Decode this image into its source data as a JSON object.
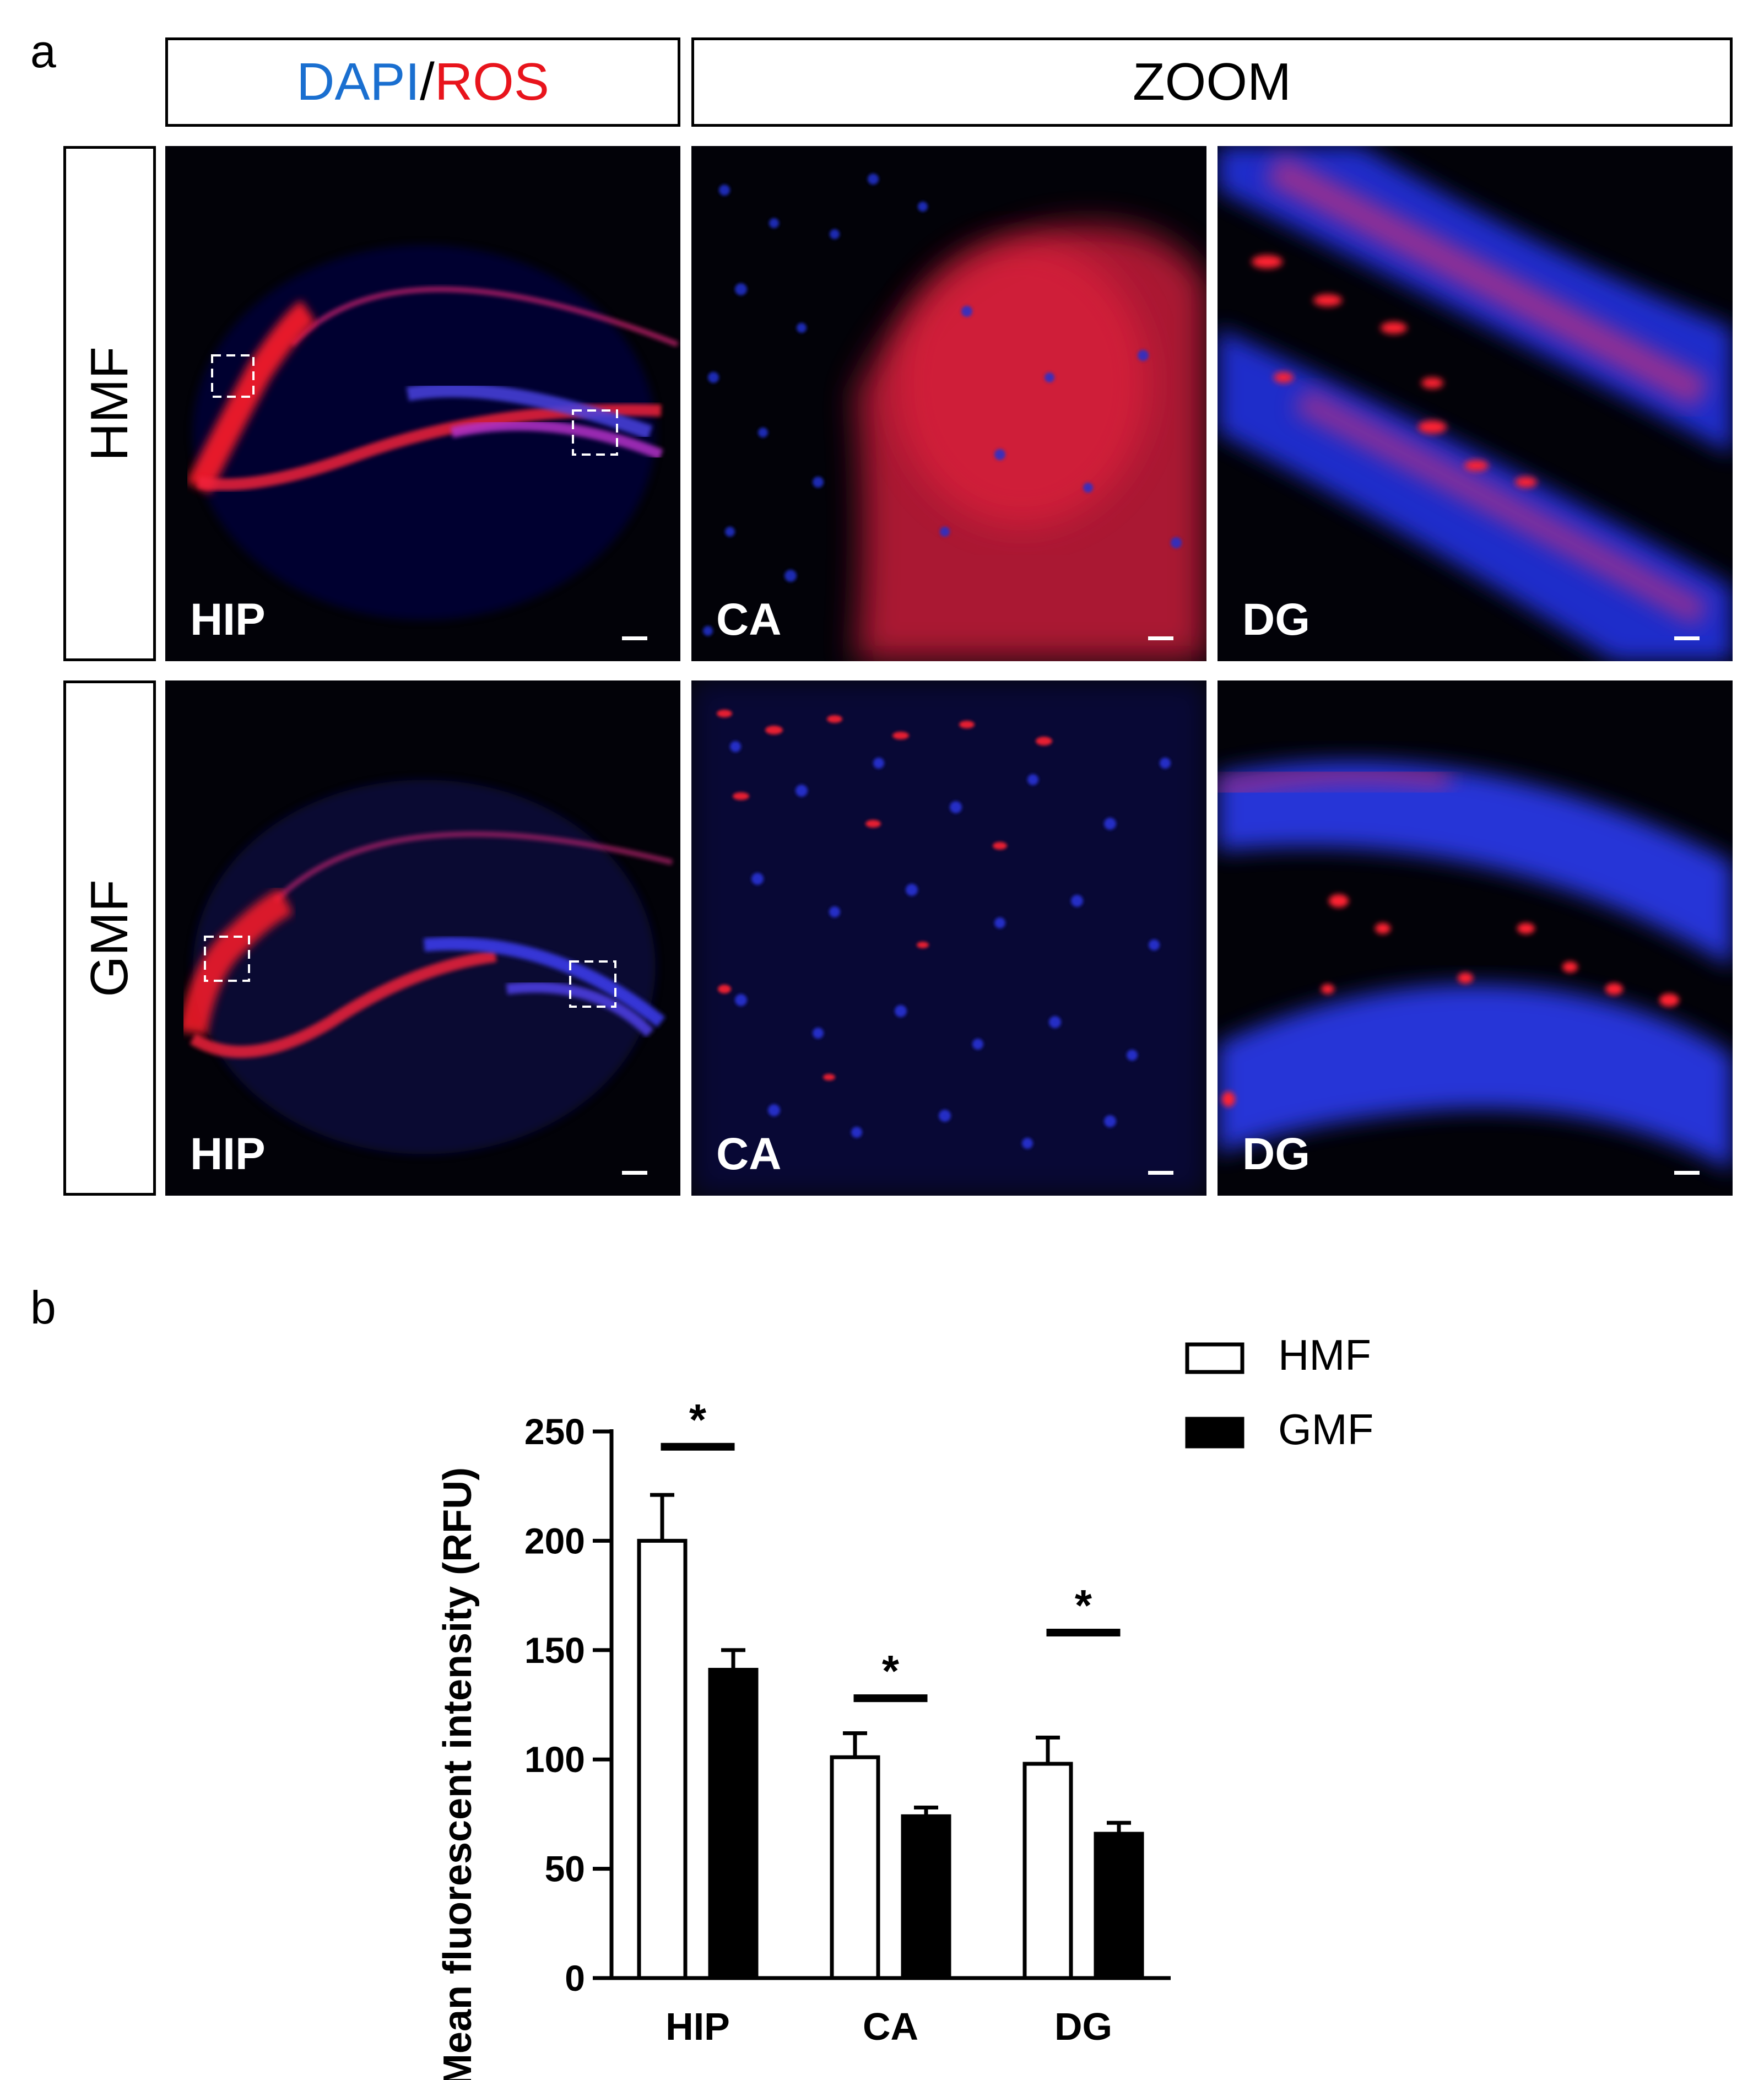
{
  "panel_a": {
    "letter": "a",
    "header_left_blue": "DAPI",
    "header_left_sep": "/",
    "header_left_red": "ROS",
    "header_right": "ZOOM",
    "rows": [
      {
        "label": "HMF",
        "images": [
          {
            "label": "HIP"
          },
          {
            "label": "CA"
          },
          {
            "label": "DG"
          }
        ]
      },
      {
        "label": "GMF",
        "images": [
          {
            "label": "HIP"
          },
          {
            "label": "CA"
          },
          {
            "label": "DG"
          }
        ]
      }
    ],
    "colors": {
      "dapi": "#1a6fd0",
      "ros": "#e8141c"
    }
  },
  "panel_b": {
    "letter": "b"
  },
  "chart_data": {
    "type": "bar",
    "categories": [
      "HIP",
      "CA",
      "DG"
    ],
    "series": [
      {
        "name": "HMF",
        "values": [
          200,
          101,
          98
        ],
        "errors": [
          21,
          11,
          12
        ],
        "fill": "#ffffff"
      },
      {
        "name": "GMF",
        "values": [
          141,
          74,
          66
        ],
        "errors": [
          9,
          4,
          5
        ],
        "fill": "#000000"
      }
    ],
    "ylabel": "Mean fluorescent intensity (RFU)",
    "ylim": [
      0,
      250
    ],
    "yticks": [
      0,
      50,
      100,
      150,
      200,
      250
    ],
    "significance": [
      {
        "category": "HIP",
        "label": "*",
        "y": 243
      },
      {
        "category": "CA",
        "label": "*",
        "y": 128
      },
      {
        "category": "DG",
        "label": "*",
        "y": 158
      }
    ],
    "legend_position": "top-right",
    "grid": false
  }
}
